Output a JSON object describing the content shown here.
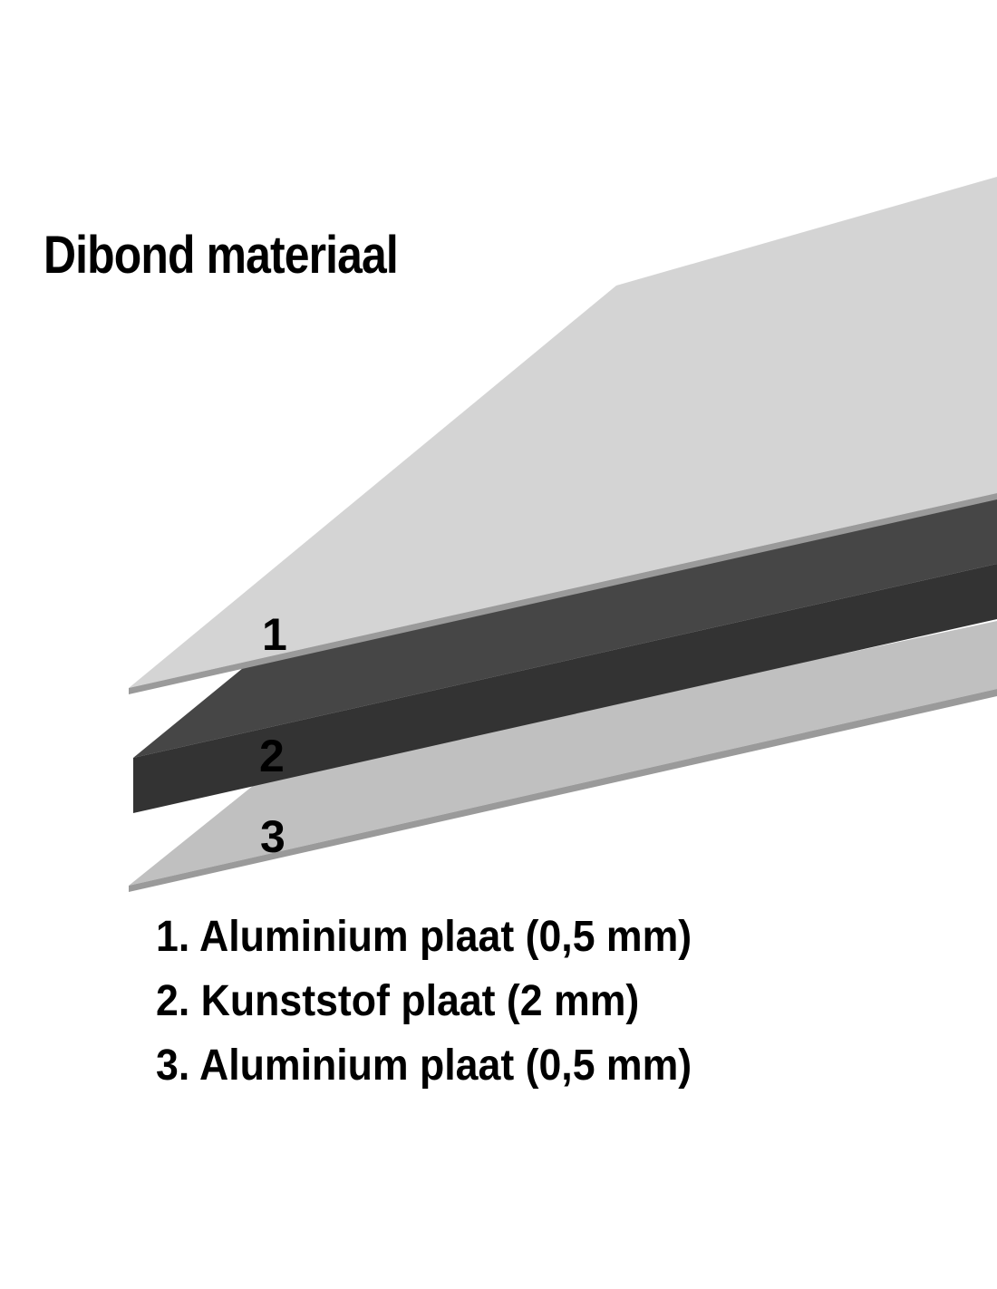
{
  "title": "Dibond materiaal",
  "layer_labels": [
    "1",
    "2",
    "3"
  ],
  "legend": [
    "1. Aluminium plaat (0,5 mm)",
    "2. Kunststof plaat (2 mm)",
    "3. Aluminium plaat (0,5 mm)"
  ],
  "colors": {
    "aluminium_top": "#d4d4d4",
    "aluminium_edge": "#9a9a9a",
    "plastic_top": "#464646",
    "plastic_front": "#333333",
    "aluminium_bottom": "#c0c0c0"
  }
}
